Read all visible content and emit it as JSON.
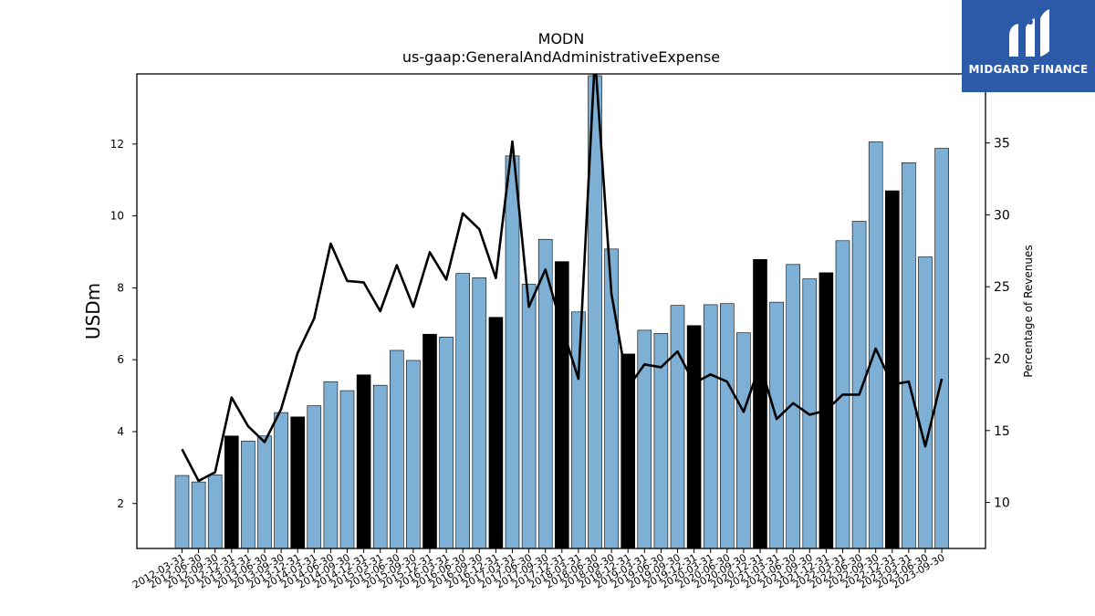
{
  "chart_data": {
    "type": "bar",
    "title": "MODN",
    "subtitle": "us-gaap:GeneralAndAdministrativeExpense",
    "ylabel": "USDm",
    "y2label": "Percentage of Revenues",
    "ylim": [
      0.75,
      13.95
    ],
    "y2lim": [
      6.8,
      39.8
    ],
    "yticks": [
      2,
      4,
      6,
      8,
      10,
      12
    ],
    "y2ticks": [
      10,
      15,
      20,
      25,
      30,
      35
    ],
    "grid": false,
    "categories": [
      "2012-03-31",
      "2012-06-30",
      "2012-09-30",
      "2012-12-31",
      "2013-03-31",
      "2013-06-30",
      "2013-09-30",
      "2013-12-31",
      "2014-03-31",
      "2014-06-30",
      "2014-09-30",
      "2014-12-31",
      "2015-03-31",
      "2015-06-30",
      "2015-09-30",
      "2015-12-31",
      "2016-03-31",
      "2016-06-30",
      "2016-09-30",
      "2016-12-31",
      "2017-03-31",
      "2017-06-30",
      "2017-09-30",
      "2017-12-31",
      "2018-03-31",
      "2018-06-30",
      "2018-09-30",
      "2018-12-31",
      "2019-03-31",
      "2019-06-30",
      "2019-09-30",
      "2019-12-31",
      "2020-03-31",
      "2020-06-30",
      "2020-09-30",
      "2020-12-31",
      "2021-03-31",
      "2021-06-30",
      "2021-09-30",
      "2021-12-31",
      "2022-03-31",
      "2022-06-30",
      "2022-09-30",
      "2022-12-31",
      "2023-03-31",
      "2023-06-30",
      "2023-09-30"
    ],
    "series": [
      {
        "type": "bar",
        "values": [
          2.78,
          2.6,
          2.8,
          3.88,
          3.74,
          3.88,
          4.53,
          4.41,
          4.72,
          5.39,
          5.14,
          5.58,
          5.29,
          6.26,
          5.98,
          6.71,
          6.63,
          8.4,
          8.28,
          7.18,
          11.67,
          8.1,
          9.35,
          8.73,
          7.33,
          13.9,
          9.08,
          6.16,
          6.82,
          6.73,
          7.51,
          6.95,
          7.53,
          7.56,
          6.75,
          8.79,
          7.6,
          8.65,
          8.25,
          8.42,
          9.31,
          9.85,
          12.06,
          10.7,
          11.48,
          8.86,
          11.88
        ],
        "colors": [
          "#7eb0d5",
          "#7eb0d5",
          "#7eb0d5",
          "#000000",
          "#7eb0d5",
          "#7eb0d5",
          "#7eb0d5",
          "#000000",
          "#7eb0d5",
          "#7eb0d5",
          "#7eb0d5",
          "#000000",
          "#7eb0d5",
          "#7eb0d5",
          "#7eb0d5",
          "#000000",
          "#7eb0d5",
          "#7eb0d5",
          "#7eb0d5",
          "#000000",
          "#7eb0d5",
          "#7eb0d5",
          "#7eb0d5",
          "#000000",
          "#7eb0d5",
          "#7eb0d5",
          "#7eb0d5",
          "#000000",
          "#7eb0d5",
          "#7eb0d5",
          "#7eb0d5",
          "#000000",
          "#7eb0d5",
          "#7eb0d5",
          "#7eb0d5",
          "#000000",
          "#7eb0d5",
          "#7eb0d5",
          "#7eb0d5",
          "#000000",
          "#7eb0d5",
          "#7eb0d5",
          "#7eb0d5",
          "#000000",
          "#7eb0d5",
          "#7eb0d5",
          "#7eb0d5"
        ]
      },
      {
        "type": "line",
        "axis": "right",
        "color": "#000000",
        "values": [
          13.7,
          11.5,
          12.1,
          17.3,
          15.3,
          14.2,
          16.5,
          20.4,
          22.8,
          28.0,
          25.4,
          25.3,
          23.3,
          26.5,
          23.6,
          27.4,
          25.5,
          30.1,
          29.0,
          25.6,
          35.1,
          23.6,
          26.2,
          22.2,
          18.6,
          41.0,
          24.5,
          18.0,
          19.6,
          19.4,
          20.5,
          18.3,
          18.9,
          18.4,
          16.3,
          19.6,
          15.8,
          16.9,
          16.1,
          16.4,
          17.5,
          17.5,
          20.7,
          18.2,
          18.4,
          13.9,
          18.6
        ]
      }
    ]
  },
  "logo": {
    "text": "MIDGARD FINANCE"
  }
}
